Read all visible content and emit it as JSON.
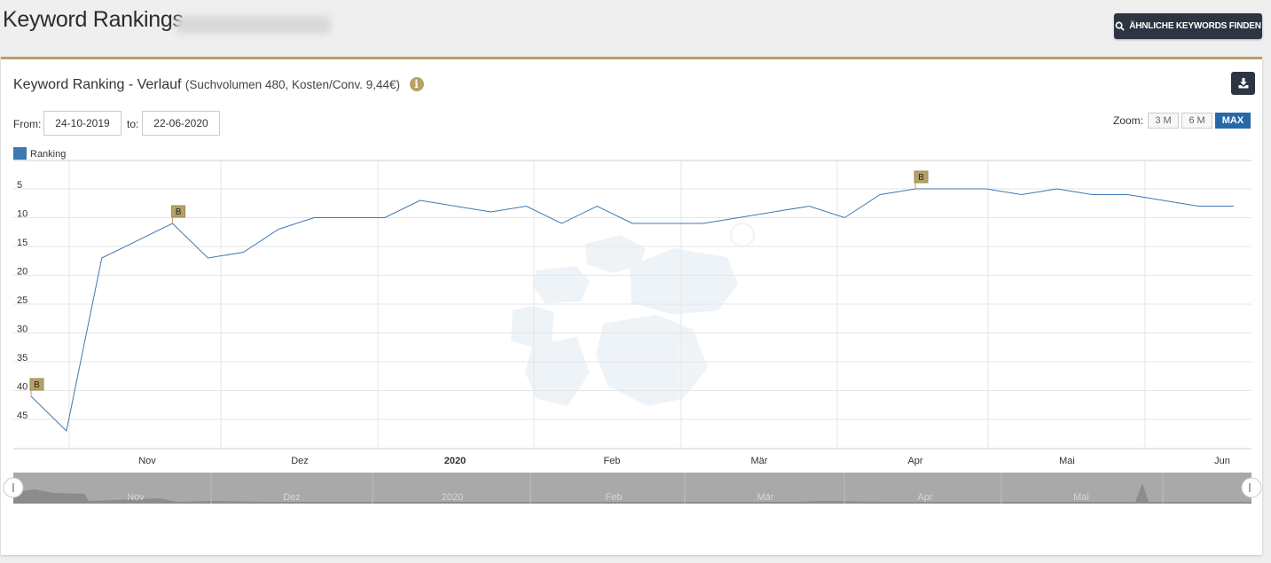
{
  "header": {
    "title": "Keyword Rankings",
    "similar_keywords_label": "ÄHNLICHE KEYWORDS FINDEN"
  },
  "card": {
    "title": "Keyword Ranking - Verlauf",
    "subtitle": "(Suchvolumen 480, Kosten/Conv. 9,44€)",
    "from_label": "From:",
    "from_value": "24-10-2019",
    "to_label": "to:",
    "to_value": "22-06-2020",
    "zoom_label": "Zoom:",
    "zoom_options": [
      "3 M",
      "6 M",
      "MAX"
    ],
    "zoom_active": "MAX"
  },
  "icons": {
    "search": "search-icon",
    "info": "info-icon",
    "download": "download-icon"
  },
  "colors": {
    "accent": "#b6a166",
    "button_dark": "#2d3542",
    "series": "#3e78b2",
    "zoom_active": "#2769a8",
    "flag": "#b6a166"
  },
  "chart_data": {
    "type": "line",
    "series": [
      {
        "name": "Ranking",
        "points": [
          [
            "2019-10-24",
            41
          ],
          [
            "2019-10-31",
            47
          ],
          [
            "2019-11-07",
            17
          ],
          [
            "2019-11-21",
            11
          ],
          [
            "2019-11-28",
            17
          ],
          [
            "2019-12-05",
            16
          ],
          [
            "2019-12-12",
            12
          ],
          [
            "2019-12-19",
            10
          ],
          [
            "2020-01-02",
            10
          ],
          [
            "2020-01-09",
            7
          ],
          [
            "2020-01-23",
            9
          ],
          [
            "2020-01-30",
            8
          ],
          [
            "2020-02-06",
            11
          ],
          [
            "2020-02-13",
            8
          ],
          [
            "2020-02-20",
            11
          ],
          [
            "2020-03-05",
            11
          ],
          [
            "2020-03-26",
            8
          ],
          [
            "2020-04-02",
            10
          ],
          [
            "2020-04-09",
            6
          ],
          [
            "2020-04-16",
            5
          ],
          [
            "2020-04-30",
            5
          ],
          [
            "2020-05-07",
            6
          ],
          [
            "2020-05-14",
            5
          ],
          [
            "2020-05-21",
            6
          ],
          [
            "2020-05-28",
            6
          ],
          [
            "2020-06-11",
            8
          ],
          [
            "2020-06-18",
            8
          ]
        ]
      }
    ],
    "flags": [
      {
        "x": "2019-10-24",
        "y": 41,
        "label": "B"
      },
      {
        "x": "2019-11-21",
        "y": 11,
        "label": "B"
      },
      {
        "x": "2020-04-16",
        "y": 5,
        "label": "B"
      }
    ],
    "x_ticks": [
      "Nov",
      "Dez",
      "2020",
      "Feb",
      "Mär",
      "Apr",
      "Mai",
      "Jun"
    ],
    "y_ticks": [
      5,
      10,
      15,
      20,
      25,
      30,
      35,
      40,
      45
    ],
    "y_reversed": true,
    "navigator_labels": [
      "Nov",
      "Dez",
      "2020",
      "Feb",
      "Mär",
      "Apr",
      "Mai"
    ],
    "legend": "top-left",
    "grid": true
  }
}
